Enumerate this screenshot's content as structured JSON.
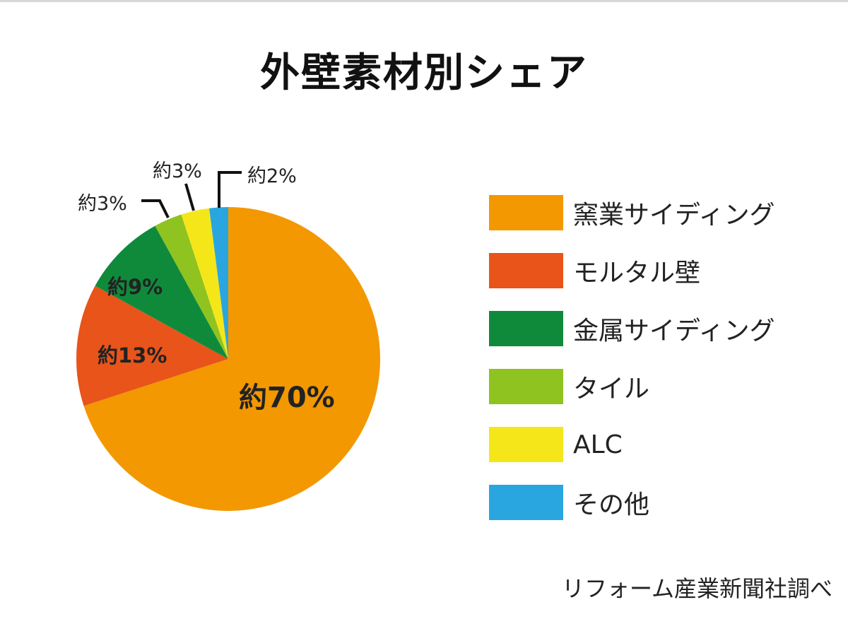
{
  "chart_data": {
    "type": "pie",
    "title": "外壁素材別シェア",
    "start_angle": "top, clockwise",
    "slices": [
      {
        "name": "窯業サイディング",
        "value": 70,
        "label": "約70%",
        "color": "#f39800"
      },
      {
        "name": "モルタル壁",
        "value": 13,
        "label": "約13%",
        "color": "#e8541a"
      },
      {
        "name": "金属サイディング",
        "value": 9,
        "label": "約9%",
        "color": "#0f8a3b"
      },
      {
        "name": "タイル",
        "value": 3,
        "label": "約3%",
        "color": "#8fc31f"
      },
      {
        "name": "ALC",
        "value": 3,
        "label": "約3%",
        "color": "#f5e61a"
      },
      {
        "name": "その他",
        "value": 2,
        "label": "約2%",
        "color": "#29a6e0"
      }
    ],
    "legend_position": "right",
    "source": "リフォーム産業新聞社調べ"
  }
}
